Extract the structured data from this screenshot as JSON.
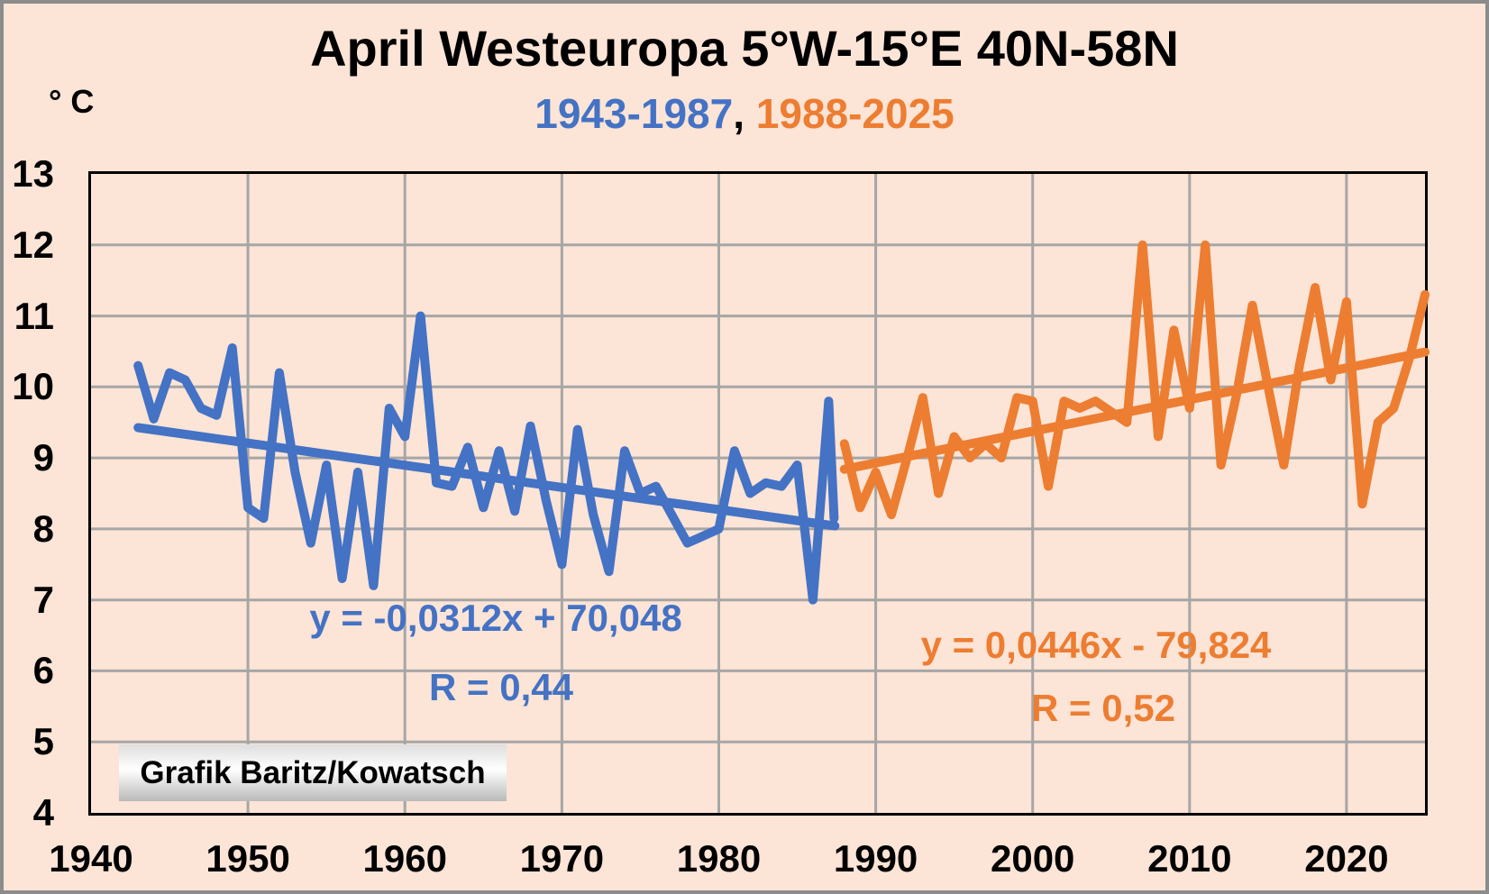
{
  "title": "April Westeuropa 5°W-15°E 40N-58N",
  "subtitle": {
    "period1": "1943-1987",
    "separator": ", ",
    "period2": "1988-2025"
  },
  "y_axis": {
    "unit": "° C",
    "ticks": [
      13,
      12,
      11,
      10,
      9,
      8,
      7,
      6,
      5,
      4
    ]
  },
  "x_axis": {
    "ticks": [
      1940,
      1950,
      1960,
      1970,
      1980,
      1990,
      2000,
      2010,
      2020
    ]
  },
  "annotations": {
    "blue_equation": "y = -0,0312x + 70,048",
    "blue_r": "R = 0,44",
    "orange_equation": "y = 0,0446x - 79,824",
    "orange_r": "R = 0,52"
  },
  "watermark": "Grafik Baritz/Kowatsch",
  "colors": {
    "background": "#fce4d6",
    "blue": "#4472c4",
    "orange": "#ed7d31",
    "grid": "#a6a6a6",
    "plot_border": "#000000",
    "text": "#000000"
  },
  "chart_data": {
    "type": "line",
    "title": "April Westeuropa 5°W-15°E 40N-58N",
    "subtitle": "1943-1987, 1988-2025",
    "xlabel": "",
    "ylabel": "° C",
    "x_range": [
      1940,
      2025
    ],
    "y_range": [
      4,
      13
    ],
    "grid": true,
    "legend": "none",
    "series": [
      {
        "name": "1943-1987",
        "color_key": "blue",
        "color": "#4472c4",
        "start_year": 1943,
        "values": [
          10.3,
          9.55,
          10.2,
          10.1,
          9.7,
          9.6,
          10.55,
          8.3,
          8.15,
          10.2,
          8.8,
          7.8,
          8.9,
          7.3,
          8.8,
          7.2,
          9.7,
          9.3,
          11.0,
          8.65,
          8.6,
          9.15,
          8.3,
          9.1,
          8.25,
          9.45,
          8.4,
          7.5,
          9.4,
          8.2,
          7.4,
          9.1,
          8.5,
          8.6,
          8.2,
          7.8,
          7.9,
          8.0,
          9.1,
          8.5,
          8.65,
          8.6,
          8.9,
          7.0,
          9.8
        ],
        "tail_segment": {
          "year": 1987.35,
          "value": 8.15
        }
      },
      {
        "name": "1988-2025",
        "color_key": "orange",
        "color": "#ed7d31",
        "start_year": 1988,
        "values": [
          9.2,
          8.3,
          8.8,
          8.2,
          9.0,
          9.85,
          8.5,
          9.3,
          9.0,
          9.2,
          9.0,
          9.85,
          9.8,
          8.6,
          9.8,
          9.7,
          9.8,
          9.65,
          9.5,
          12.0,
          9.3,
          10.8,
          9.7,
          12.0,
          8.9,
          9.9,
          11.15,
          10.0,
          8.9,
          10.3,
          11.4,
          10.1,
          11.2,
          8.35,
          9.5,
          9.7,
          10.4,
          11.3
        ]
      }
    ],
    "trendlines": [
      {
        "series": "1943-1987",
        "color_key": "blue",
        "slope": -0.0312,
        "intercept": 70.048,
        "r": 0.44,
        "x_start": 1943,
        "x_end": 1987.4
      },
      {
        "series": "1988-2025",
        "color_key": "orange",
        "slope": 0.0446,
        "intercept": -79.824,
        "r": 0.52,
        "x_start": 1988,
        "x_end": 2025
      }
    ]
  }
}
